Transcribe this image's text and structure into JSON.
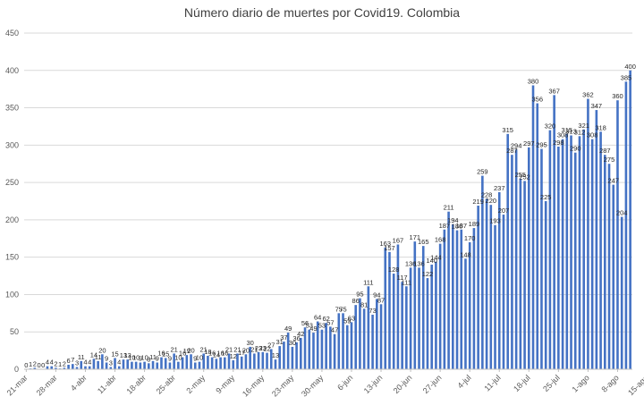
{
  "chart_data": {
    "type": "bar",
    "title": "Número diario de muertes por Covid19. Colombia",
    "xlabel": "",
    "ylabel": "",
    "ylim": [
      0,
      450
    ],
    "yticks": [
      0,
      50,
      100,
      150,
      200,
      250,
      300,
      350,
      400,
      450
    ],
    "grid": true,
    "legend": "none",
    "bar_color": "#4472c4",
    "x_tick_labels": [
      "21-mar",
      "28-mar",
      "4-abr",
      "11-abr",
      "18-abr",
      "25-abr",
      "2-may",
      "9-may",
      "16-may",
      "23-may",
      "30-may",
      "6-jun",
      "13-jun",
      "20-jun",
      "27-jun",
      "4-jul",
      "11-jul",
      "18-jul",
      "25-jul",
      "1-ago",
      "8-ago",
      "15-ago"
    ],
    "x_tick_every": 7,
    "values": [
      0,
      1,
      2,
      0,
      0,
      4,
      4,
      2,
      1,
      2,
      6,
      7,
      3,
      11,
      4,
      4,
      14,
      11,
      20,
      9,
      3,
      15,
      4,
      13,
      13,
      10,
      10,
      9,
      10,
      8,
      11,
      9,
      16,
      15,
      9,
      21,
      10,
      16,
      19,
      20,
      9,
      10,
      21,
      18,
      16,
      14,
      16,
      16,
      21,
      12,
      21,
      17,
      20,
      30,
      21,
      23,
      23,
      22,
      27,
      13,
      31,
      37,
      49,
      30,
      36,
      42,
      56,
      53,
      49,
      64,
      53,
      62,
      57,
      47,
      75,
      75,
      59,
      63,
      86,
      95,
      81,
      111,
      73,
      94,
      87,
      163,
      157,
      128,
      167,
      117,
      111,
      136,
      171,
      136,
      165,
      122,
      140,
      144,
      168,
      187,
      211,
      194,
      186,
      187,
      148,
      170,
      189,
      219,
      259,
      228,
      220,
      193,
      237,
      207,
      315,
      287,
      294,
      255,
      252,
      297,
      380,
      356,
      295,
      225,
      320,
      367,
      298,
      308,
      315,
      313,
      290,
      312,
      321,
      362,
      308,
      347,
      318,
      287,
      275,
      247,
      360,
      204,
      385,
      400
    ],
    "data_labels": [
      0,
      1,
      2,
      0,
      0,
      4,
      4,
      2,
      1,
      2,
      6,
      7,
      3,
      11,
      4,
      4,
      14,
      11,
      20,
      9,
      3,
      15,
      4,
      13,
      13,
      10,
      10,
      9,
      10,
      8,
      11,
      9,
      16,
      15,
      9,
      21,
      10,
      16,
      19,
      20,
      9,
      10,
      21,
      18,
      16,
      14,
      16,
      16,
      21,
      12,
      21,
      17,
      20,
      30,
      21,
      23,
      23,
      22,
      27,
      13,
      31,
      37,
      49,
      30,
      36,
      42,
      56,
      53,
      49,
      64,
      53,
      62,
      57,
      47,
      75,
      75,
      59,
      63,
      86,
      95,
      81,
      111,
      73,
      94,
      87,
      163,
      157,
      128,
      167,
      117,
      111,
      136,
      171,
      136,
      165,
      122,
      140,
      144,
      168,
      187,
      211,
      194,
      186,
      187,
      148,
      170,
      189,
      219,
      259,
      228,
      220,
      193,
      237,
      207,
      315,
      287,
      294,
      255,
      252,
      297,
      380,
      356,
      295,
      225,
      320,
      367,
      298,
      308,
      315,
      313,
      290,
      312,
      321,
      362,
      308,
      347,
      318,
      287,
      275,
      247,
      360,
      204,
      385,
      400
    ]
  }
}
